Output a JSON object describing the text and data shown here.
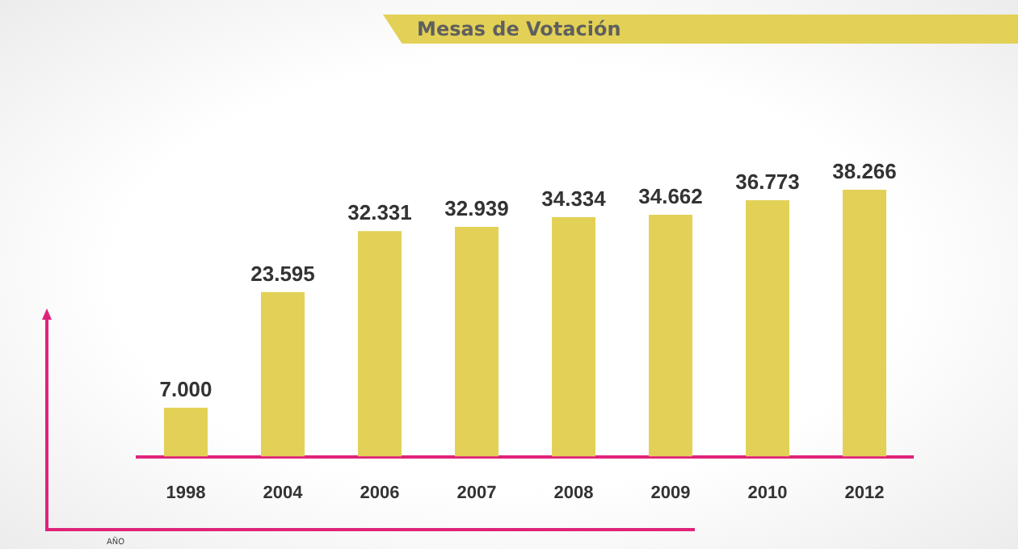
{
  "chart_data": {
    "type": "bar",
    "title": "Mesas de Votación",
    "xlabel": "AÑO",
    "categories": [
      "1998",
      "2004",
      "2006",
      "2007",
      "2008",
      "2009",
      "2010",
      "2012"
    ],
    "values": [
      7000,
      23595,
      32331,
      32939,
      34334,
      34662,
      36773,
      38266
    ],
    "value_labels": [
      "7.000",
      "23.595",
      "32.331",
      "32.939",
      "34.334",
      "34.662",
      "36.773",
      "38.266"
    ],
    "color": "#e2d156",
    "tick_labels": "x",
    "grid": false,
    "legend": false
  }
}
